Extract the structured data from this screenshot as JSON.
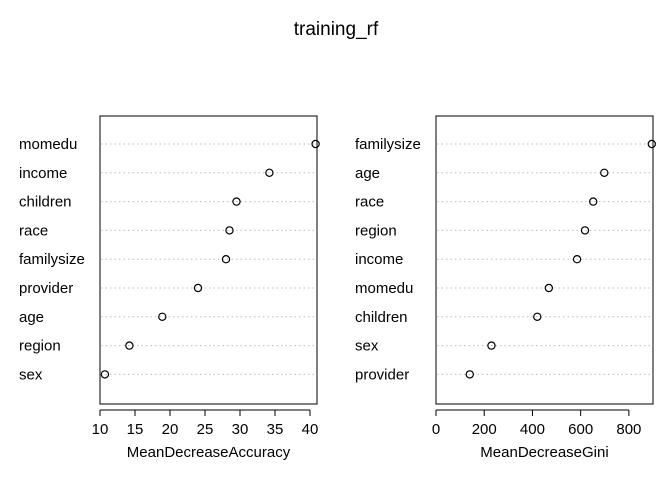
{
  "title": "training_rf",
  "chart_data": [
    {
      "type": "dot",
      "xlabel": "MeanDecreaseAccuracy",
      "xlim": [
        10,
        41
      ],
      "xticks": [
        10,
        15,
        20,
        25,
        30,
        35,
        40
      ],
      "grid": "dotted horizontal guides",
      "categories": [
        "momedu",
        "income",
        "children",
        "race",
        "familysize",
        "provider",
        "age",
        "region",
        "sex"
      ],
      "values": [
        40.8,
        34.2,
        29.5,
        28.5,
        28.0,
        24.0,
        18.9,
        14.2,
        10.7
      ]
    },
    {
      "type": "dot",
      "xlabel": "MeanDecreaseGini",
      "xlim": [
        0,
        900
      ],
      "xticks": [
        0,
        200,
        400,
        600,
        800
      ],
      "grid": "dotted horizontal guides",
      "categories": [
        "familysize",
        "age",
        "race",
        "region",
        "income",
        "momedu",
        "children",
        "sex",
        "provider"
      ],
      "values": [
        895,
        698,
        652,
        618,
        585,
        468,
        420,
        230,
        140
      ]
    }
  ]
}
